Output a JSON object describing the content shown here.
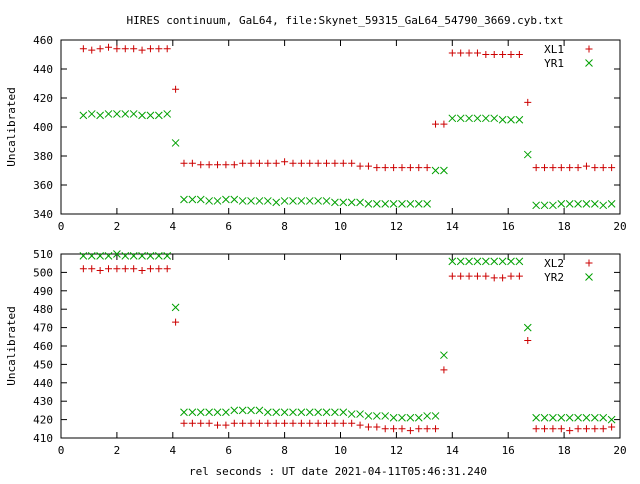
{
  "title": "HIRES continuum, GaL64, file:Skynet_59315_GaL64_54790_3669.cyb.txt",
  "xlabel": "rel seconds : UT date 2021-04-11T05:46:31.240",
  "chart_data": [
    {
      "type": "scatter",
      "ylabel": "Uncalibrated",
      "xlim": [
        0,
        20
      ],
      "ylim": [
        340,
        460
      ],
      "xticks": [
        0,
        2,
        4,
        6,
        8,
        10,
        12,
        14,
        16,
        18,
        20
      ],
      "yticks": [
        340,
        360,
        380,
        400,
        420,
        440,
        460
      ],
      "legend_position": "top-right",
      "series": [
        {
          "name": "XL1",
          "marker": "plus",
          "color": "#cc0000",
          "x": [
            0.8,
            1.1,
            1.4,
            1.7,
            2.0,
            2.3,
            2.6,
            2.9,
            3.2,
            3.5,
            3.8,
            4.1,
            4.4,
            4.7,
            5.0,
            5.3,
            5.6,
            5.9,
            6.2,
            6.5,
            6.8,
            7.1,
            7.4,
            7.7,
            8.0,
            8.3,
            8.6,
            8.9,
            9.2,
            9.5,
            9.8,
            10.1,
            10.4,
            10.7,
            11.0,
            11.3,
            11.6,
            11.9,
            12.2,
            12.5,
            12.8,
            13.1,
            13.4,
            13.7,
            14.0,
            14.3,
            14.6,
            14.9,
            15.2,
            15.5,
            15.8,
            16.1,
            16.4,
            16.7,
            17.0,
            17.3,
            17.6,
            17.9,
            18.2,
            18.5,
            18.8,
            19.1,
            19.4,
            19.7
          ],
          "y": [
            454,
            453,
            454,
            455,
            454,
            454,
            454,
            453,
            454,
            454,
            454,
            426,
            375,
            375,
            374,
            374,
            374,
            374,
            374,
            375,
            375,
            375,
            375,
            375,
            376,
            375,
            375,
            375,
            375,
            375,
            375,
            375,
            375,
            373,
            373,
            372,
            372,
            372,
            372,
            372,
            372,
            372,
            402,
            402,
            451,
            451,
            451,
            451,
            450,
            450,
            450,
            450,
            450,
            417,
            372,
            372,
            372,
            372,
            372,
            372,
            373,
            372,
            372,
            372
          ]
        },
        {
          "name": "YR1",
          "marker": "cross",
          "color": "#00a000",
          "x": [
            0.8,
            1.1,
            1.4,
            1.7,
            2.0,
            2.3,
            2.6,
            2.9,
            3.2,
            3.5,
            3.8,
            4.1,
            4.4,
            4.7,
            5.0,
            5.3,
            5.6,
            5.9,
            6.2,
            6.5,
            6.8,
            7.1,
            7.4,
            7.7,
            8.0,
            8.3,
            8.6,
            8.9,
            9.2,
            9.5,
            9.8,
            10.1,
            10.4,
            10.7,
            11.0,
            11.3,
            11.6,
            11.9,
            12.2,
            12.5,
            12.8,
            13.1,
            13.4,
            13.7,
            14.0,
            14.3,
            14.6,
            14.9,
            15.2,
            15.5,
            15.8,
            16.1,
            16.4,
            16.7,
            17.0,
            17.3,
            17.6,
            17.9,
            18.2,
            18.5,
            18.8,
            19.1,
            19.4,
            19.7
          ],
          "y": [
            408,
            409,
            408,
            409,
            409,
            409,
            409,
            408,
            408,
            408,
            409,
            389,
            350,
            350,
            350,
            349,
            349,
            350,
            350,
            349,
            349,
            349,
            349,
            348,
            349,
            349,
            349,
            349,
            349,
            349,
            348,
            348,
            348,
            348,
            347,
            347,
            347,
            347,
            347,
            347,
            347,
            347,
            370,
            370,
            406,
            406,
            406,
            406,
            406,
            406,
            405,
            405,
            405,
            381,
            346,
            346,
            346,
            347,
            347,
            347,
            347,
            347,
            346,
            347
          ]
        }
      ]
    },
    {
      "type": "scatter",
      "ylabel": "Uncalibrated",
      "xlim": [
        0,
        20
      ],
      "ylim": [
        410,
        510
      ],
      "xticks": [
        0,
        2,
        4,
        6,
        8,
        10,
        12,
        14,
        16,
        18,
        20
      ],
      "yticks": [
        410,
        420,
        430,
        440,
        450,
        460,
        470,
        480,
        490,
        500,
        510
      ],
      "legend_position": "top-right",
      "series": [
        {
          "name": "XL2",
          "marker": "plus",
          "color": "#cc0000",
          "x": [
            0.8,
            1.1,
            1.4,
            1.7,
            2.0,
            2.3,
            2.6,
            2.9,
            3.2,
            3.5,
            3.8,
            4.1,
            4.4,
            4.7,
            5.0,
            5.3,
            5.6,
            5.9,
            6.2,
            6.5,
            6.8,
            7.1,
            7.4,
            7.7,
            8.0,
            8.3,
            8.6,
            8.9,
            9.2,
            9.5,
            9.8,
            10.1,
            10.4,
            10.7,
            11.0,
            11.3,
            11.6,
            11.9,
            12.2,
            12.5,
            12.8,
            13.1,
            13.4,
            13.7,
            14.0,
            14.3,
            14.6,
            14.9,
            15.2,
            15.5,
            15.8,
            16.1,
            16.4,
            16.7,
            17.0,
            17.3,
            17.6,
            17.9,
            18.2,
            18.5,
            18.8,
            19.1,
            19.4,
            19.7
          ],
          "y": [
            502,
            502,
            501,
            502,
            502,
            502,
            502,
            501,
            502,
            502,
            502,
            473,
            418,
            418,
            418,
            418,
            417,
            417,
            418,
            418,
            418,
            418,
            418,
            418,
            418,
            418,
            418,
            418,
            418,
            418,
            418,
            418,
            418,
            417,
            416,
            416,
            415,
            415,
            415,
            414,
            415,
            415,
            415,
            447,
            498,
            498,
            498,
            498,
            498,
            497,
            497,
            498,
            498,
            463,
            415,
            415,
            415,
            415,
            414,
            415,
            415,
            415,
            415,
            416
          ]
        },
        {
          "name": "YR2",
          "marker": "cross",
          "color": "#00a000",
          "x": [
            0.8,
            1.1,
            1.4,
            1.7,
            2.0,
            2.3,
            2.6,
            2.9,
            3.2,
            3.5,
            3.8,
            4.1,
            4.4,
            4.7,
            5.0,
            5.3,
            5.6,
            5.9,
            6.2,
            6.5,
            6.8,
            7.1,
            7.4,
            7.7,
            8.0,
            8.3,
            8.6,
            8.9,
            9.2,
            9.5,
            9.8,
            10.1,
            10.4,
            10.7,
            11.0,
            11.3,
            11.6,
            11.9,
            12.2,
            12.5,
            12.8,
            13.1,
            13.4,
            13.7,
            14.0,
            14.3,
            14.6,
            14.9,
            15.2,
            15.5,
            15.8,
            16.1,
            16.4,
            16.7,
            17.0,
            17.3,
            17.6,
            17.9,
            18.2,
            18.5,
            18.8,
            19.1,
            19.4,
            19.7
          ],
          "y": [
            509,
            509,
            509,
            509,
            510,
            509,
            509,
            509,
            509,
            509,
            509,
            481,
            424,
            424,
            424,
            424,
            424,
            424,
            425,
            425,
            425,
            425,
            424,
            424,
            424,
            424,
            424,
            424,
            424,
            424,
            424,
            424,
            423,
            423,
            422,
            422,
            422,
            421,
            421,
            421,
            421,
            422,
            422,
            455,
            506,
            506,
            506,
            506,
            506,
            506,
            506,
            506,
            506,
            470,
            421,
            421,
            421,
            421,
            421,
            421,
            421,
            421,
            421,
            420
          ]
        }
      ]
    }
  ]
}
